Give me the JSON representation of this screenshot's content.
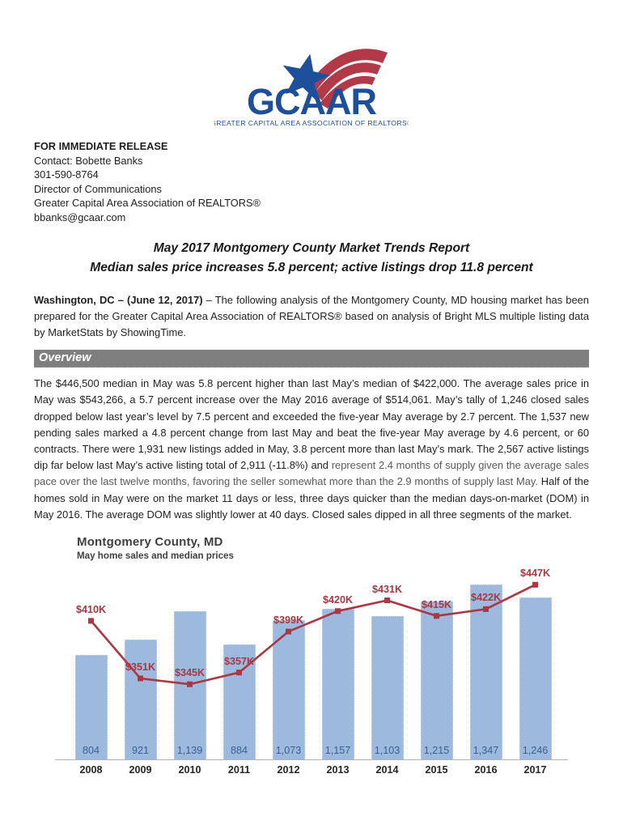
{
  "logo": {
    "brand": "GCAAR",
    "tagline": "GREATER CAPITAL AREA ASSOCIATION OF REALTORS®",
    "colors": {
      "navy": "#1e4f9b",
      "red": "#b23a48"
    }
  },
  "release": {
    "label": "FOR IMMEDIATE RELEASE",
    "contact": "Contact: Bobette Banks",
    "phone": "301-590-8764",
    "role": "Director of Communications",
    "organization": "Greater Capital Area Association of REALTORS®",
    "email": "bbanks@gcaar.com"
  },
  "headline": {
    "line1": "May 2017 Montgomery County Market Trends Report",
    "line2": "Median sales price increases 5.8 percent; active listings drop 11.8 percent"
  },
  "intro": {
    "dateline": "Washington, DC – (June 12, 2017)",
    "dash": " – ",
    "body": "The following analysis of the Montgomery County, MD housing market has been prepared for the Greater Capital Area Association of REALTORS® based on analysis of Bright MLS multiple listing data by MarketStats by ShowingTime."
  },
  "overview": {
    "heading": "Overview",
    "part1": "The $446,500 median in May was 5.8 percent higher than last May’s median of $422,000. The average sales price in May was $543,266, a 5.7 percent increase over the May 2016 average of $514,061. May’s tally of 1,246 closed sales dropped below last year’s level by 7.5 percent and exceeded the five-year May average by 2.7 percent.  The 1,537 new pending sales marked a 4.8 percent change from last May and beat the five-year May average by 4.6 percent, or 60 contracts.  There were 1,931 new listings added in May, 3.8 percent more than last May’s mark. The 2,567 active listings dip far below last May’s active listing total of 2,911 (-11.8%) and ",
    "part2_gray": "represent 2.4 months of supply given the average sales pace over the last twelve months, favoring the seller somewhat more than the 2.9 months of supply last May.",
    "part3": " Half of the homes sold in May were on the market 11 days or less, three days quicker than the median days-on-market (DOM) in May 2016. The average DOM was slightly lower at 40 days. Closed sales dipped in all three segments of the market."
  },
  "chart_data": {
    "type": "bar",
    "combo": "bar+line",
    "title": "Montgomery County, MD",
    "subtitle": "May home sales and median prices",
    "categories": [
      "2008",
      "2009",
      "2010",
      "2011",
      "2012",
      "2013",
      "2014",
      "2015",
      "2016",
      "2017"
    ],
    "series": [
      {
        "name": "May closed sales",
        "type": "bar",
        "values": [
          804,
          921,
          1139,
          884,
          1073,
          1157,
          1103,
          1215,
          1347,
          1246
        ],
        "labels": [
          "804",
          "921",
          "1,139",
          "884",
          "1,073",
          "1,157",
          "1,103",
          "1,215",
          "1,347",
          "1,246"
        ],
        "color": "#9db9dd",
        "label_color": "#3a6191",
        "axis_range": [
          0,
          1465
        ]
      },
      {
        "name": "May median sales price ($K)",
        "type": "line",
        "values": [
          410,
          351,
          345,
          357,
          399,
          420,
          431,
          415,
          422,
          447
        ],
        "labels": [
          "$410K",
          "$351K",
          "$345K",
          "$357K",
          "$399K",
          "$420K",
          "$431K",
          "$415K",
          "$422K",
          "$447K"
        ],
        "color": "#a93744",
        "axis_range": [
          268,
          463
        ]
      }
    ],
    "grid": false,
    "legend": "none"
  }
}
